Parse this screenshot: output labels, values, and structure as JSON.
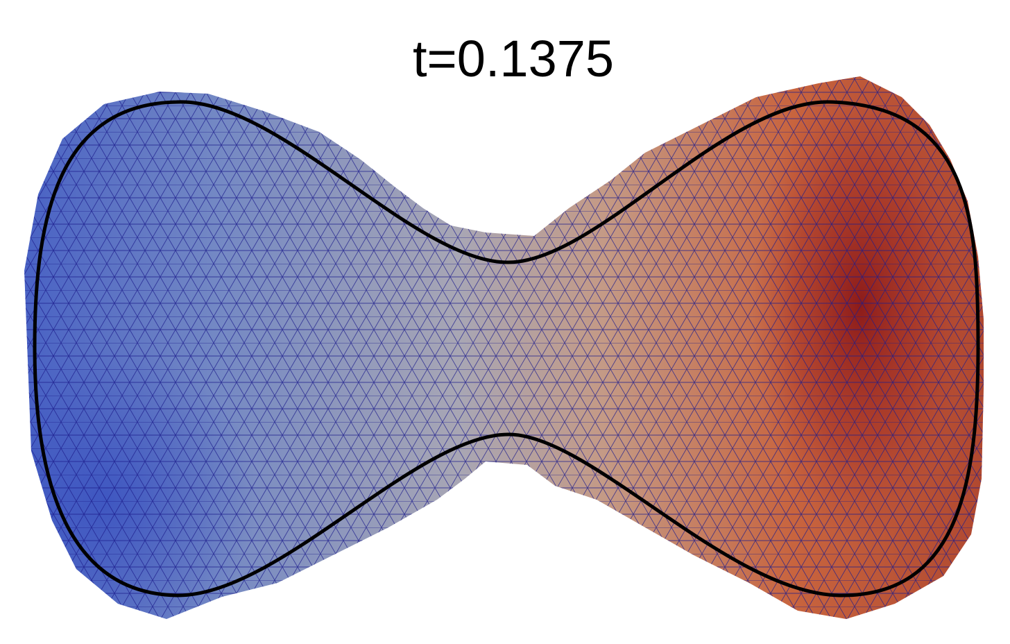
{
  "title": "t=0.1375"
}
